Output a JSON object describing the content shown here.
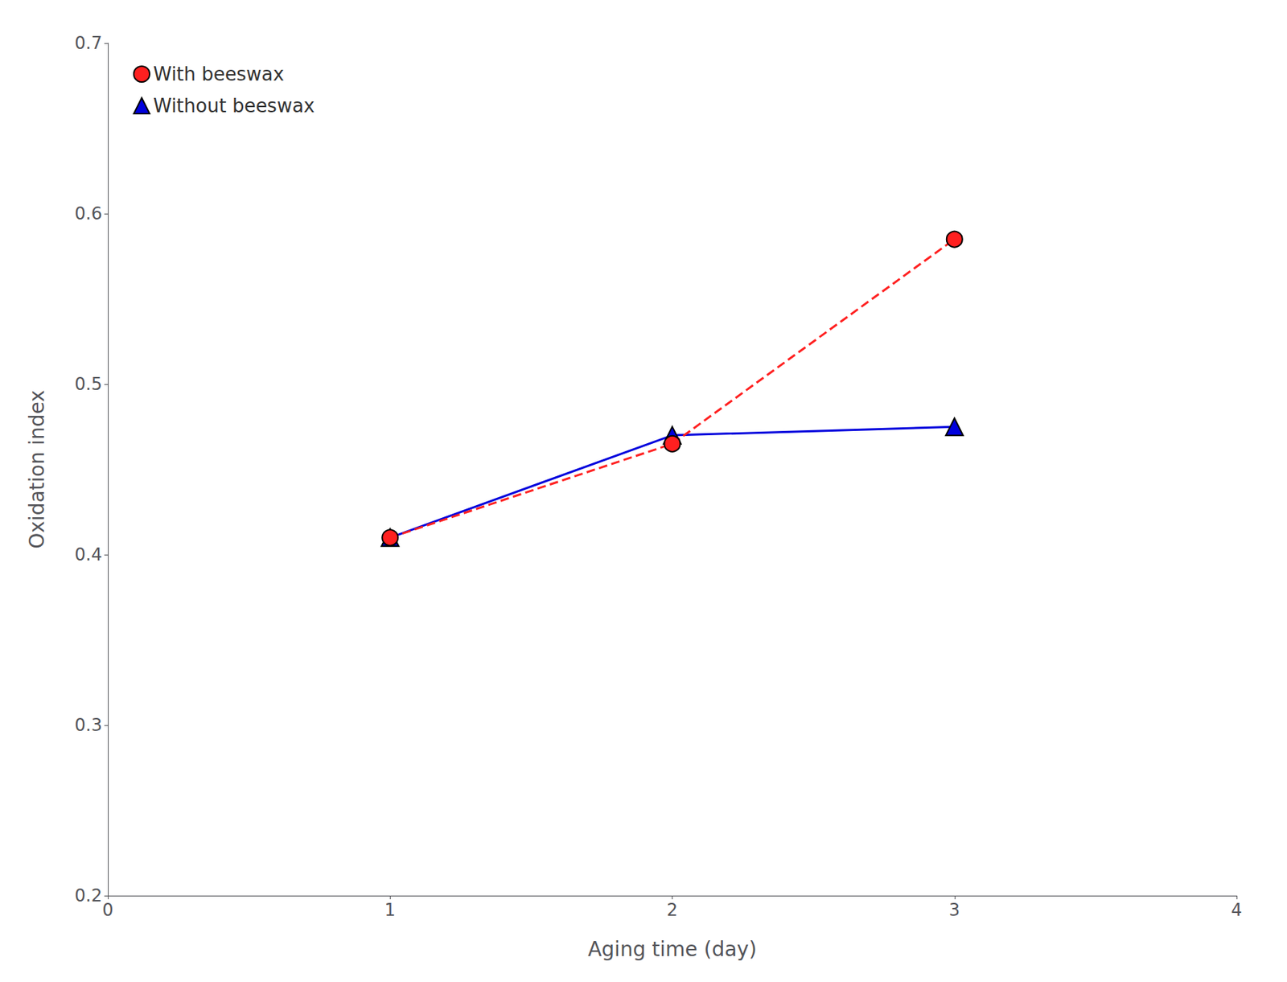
{
  "chart_data": {
    "type": "line",
    "xlabel": "Aging time (day)",
    "ylabel": "Oxidation index",
    "x": [
      1,
      2,
      3
    ],
    "series": [
      {
        "name": "With beeswax",
        "color": "#ff2020",
        "marker": "circle",
        "line_style": "dashed",
        "values": [
          0.41,
          0.465,
          0.585
        ]
      },
      {
        "name": "Without beeswax",
        "color": "#0000dd",
        "marker": "triangle",
        "line_style": "solid",
        "values": [
          0.41,
          0.47,
          0.475
        ]
      }
    ],
    "xlim": [
      0,
      4
    ],
    "ylim": [
      0.2,
      0.7
    ],
    "xticks": [
      0,
      1,
      2,
      3,
      4
    ],
    "yticks": [
      0.2,
      0.3,
      0.4,
      0.5,
      0.6,
      0.7
    ],
    "grid": false,
    "legend": "upper left"
  }
}
